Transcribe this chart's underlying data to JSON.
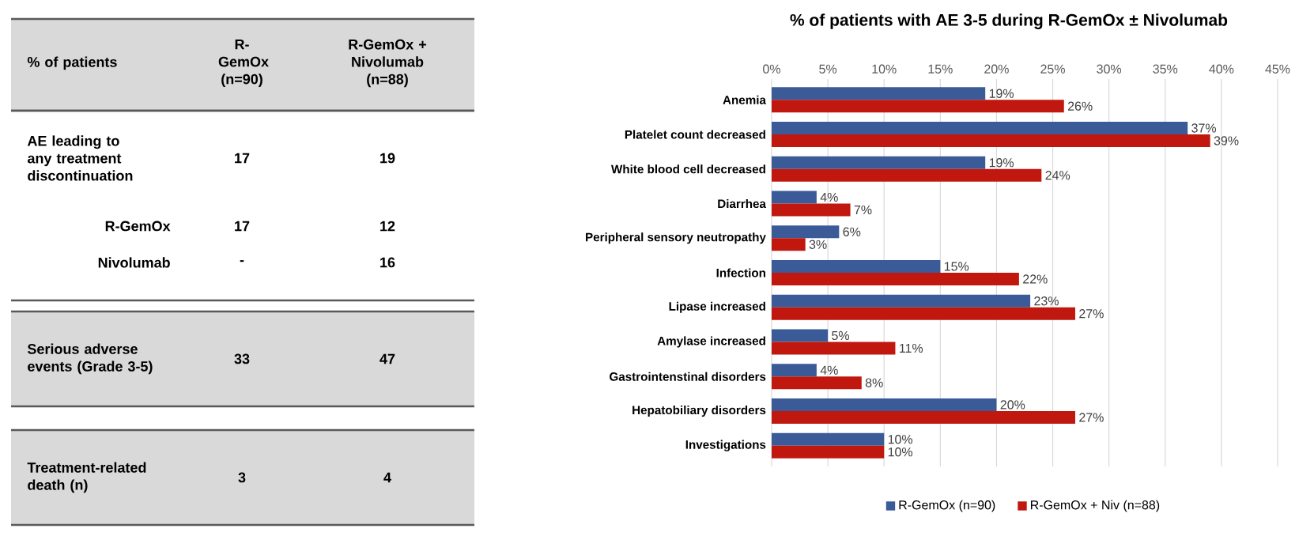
{
  "chart_data": [
    {
      "type": "other",
      "annotations": [
        "% of patients",
        "R-GemOx (n=90)",
        "R-GemOx + Nivolumab (n=88)",
        "AE leading to any treatment discontinuation",
        "17",
        "19",
        "R-GemOx",
        "17",
        "12",
        "Nivolumab",
        "-",
        "16",
        "Serious adverse events (Grade 3-5)",
        "33",
        "47",
        "Treatment-related death (n)",
        "3",
        "4"
      ]
    },
    {
      "type": "bar",
      "orientation": "horizontal",
      "title": "% of patients with AE 3-5 during R-GemOx ± Nivolumab",
      "categories": [
        "Anemia",
        "Platelet count decreased",
        "White blood cell decreased",
        "Diarrhea",
        "Peripheral sensory neutropathy",
        "Infection",
        "Lipase increased",
        "Amylase increased",
        "Gastrointenstinal disorders",
        "Hepatobiliary disorders",
        "Investigations"
      ],
      "series": [
        {
          "name": "R-GemOx (n=90)",
          "color": "#3a5a98",
          "values": [
            19,
            37,
            19,
            4,
            6,
            15,
            23,
            5,
            4,
            20,
            10
          ],
          "value_labels": [
            "19%",
            "37%",
            "19%",
            "4%",
            "6%",
            "15%",
            "23%",
            "5%",
            "4%",
            "20%",
            "10%"
          ]
        },
        {
          "name": "R-GemOx + Niv (n=88)",
          "color": "#c0170f",
          "values": [
            26,
            39,
            24,
            7,
            3,
            22,
            27,
            11,
            8,
            27,
            10
          ],
          "value_labels": [
            "26%",
            "39%",
            "24%",
            "7%",
            "3%",
            "22%",
            "27%",
            "11%",
            "8%",
            "27%",
            "10%"
          ]
        }
      ],
      "xlim": [
        0,
        45
      ],
      "xticks": [
        {
          "value": 0,
          "label": "0%"
        },
        {
          "value": 5,
          "label": "5%"
        },
        {
          "value": 10,
          "label": "10%"
        },
        {
          "value": 15,
          "label": "15%"
        },
        {
          "value": 20,
          "label": "20%"
        },
        {
          "value": 25,
          "label": "25%"
        },
        {
          "value": 30,
          "label": "30%"
        },
        {
          "value": 35,
          "label": "35%"
        },
        {
          "value": 40,
          "label": "40%"
        },
        {
          "value": 45,
          "label": "45%"
        }
      ],
      "grid": "x",
      "legend": "bottom"
    }
  ]
}
